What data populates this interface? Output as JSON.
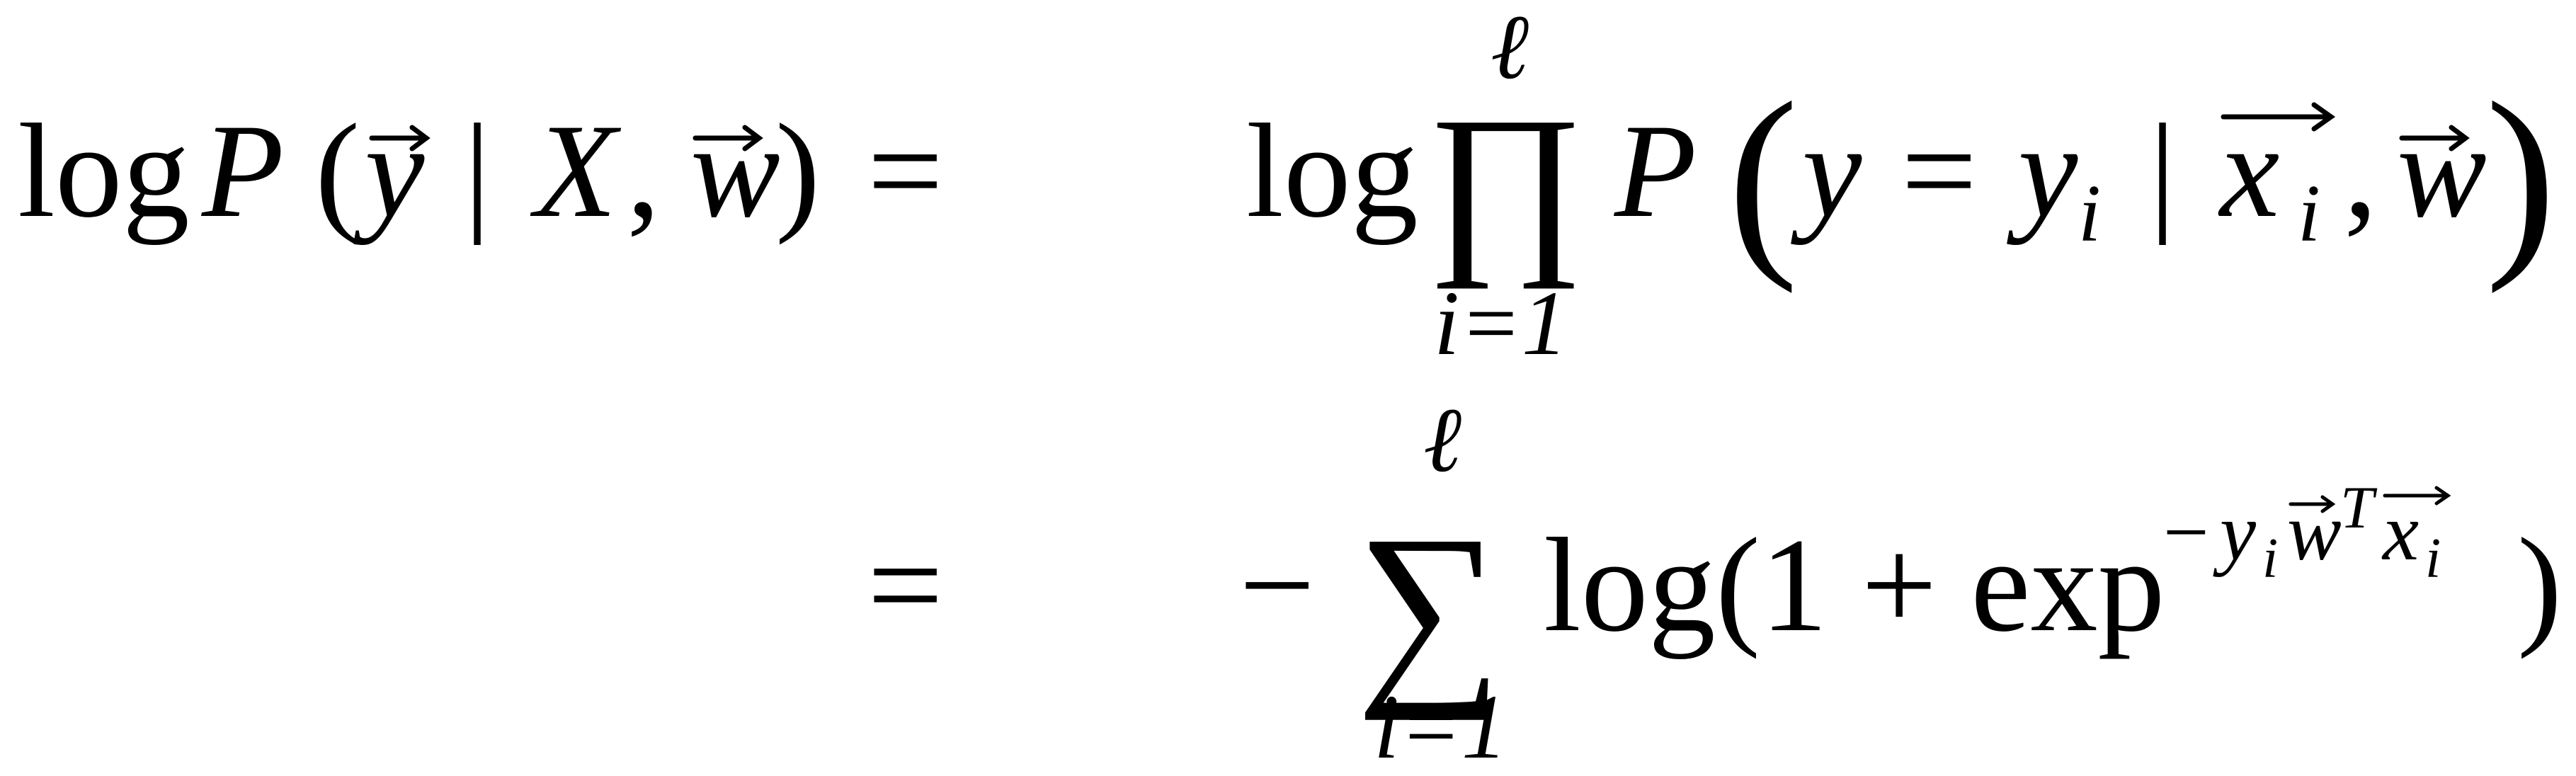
{
  "equation": {
    "line1": {
      "lhs": {
        "log": "log",
        "P": "P",
        "open_paren": "(",
        "y": "y",
        "bar": "|",
        "X": "X",
        "comma": ",",
        "w": "w",
        "close_paren": ")"
      },
      "equals": "=",
      "rhs": {
        "log": "log",
        "product_symbol": "∏",
        "upper_limit": "ℓ",
        "lower_limit": "i=1",
        "P": "P",
        "open_paren": "(",
        "y": "y",
        "eq": "=",
        "y_i_base": "y",
        "y_i_sub": "i",
        "bar": "|",
        "x_i_base": "x",
        "x_i_sub": "i",
        "comma": ",",
        "w": "w",
        "close_paren": ")"
      }
    },
    "line2": {
      "equals": "=",
      "rhs": {
        "minus": "−",
        "sum_symbol": "∑",
        "upper_limit": "ℓ",
        "lower_limit": "i=1",
        "log_open": "log(1 + exp",
        "exp_minus": "−",
        "exp_y": "y",
        "exp_y_sub": "i",
        "exp_w": "w",
        "exp_T": "T",
        "exp_x": "x",
        "exp_x_sub": "i",
        "close_paren": ")"
      }
    }
  },
  "colors": {
    "ink": "#000000",
    "background": "#ffffff"
  }
}
